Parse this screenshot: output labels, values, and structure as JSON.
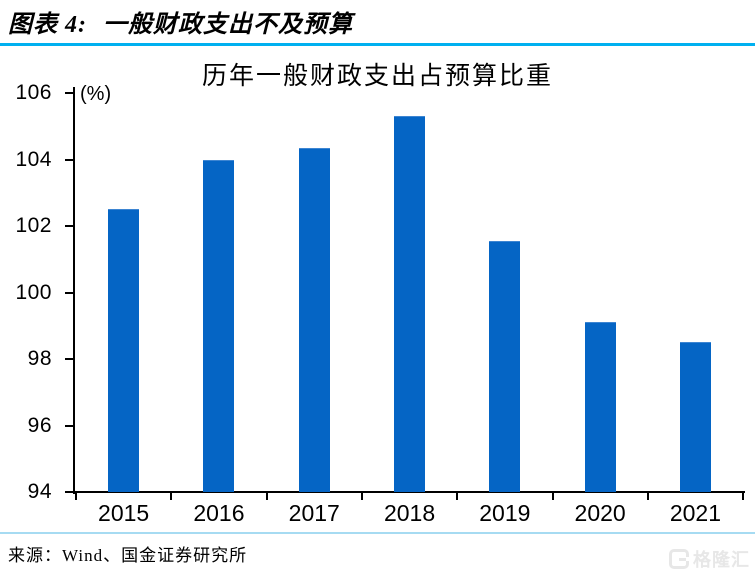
{
  "header": {
    "figure_label": "图表 4:",
    "figure_title": "一般财政支出不及预算"
  },
  "chart_data": {
    "type": "bar",
    "title": "历年一般财政支出占预算比重",
    "unit_label": "(%)",
    "xlabel": "",
    "ylabel": "(%)",
    "categories": [
      "2015",
      "2016",
      "2017",
      "2018",
      "2019",
      "2020",
      "2021"
    ],
    "values": [
      102.5,
      104.0,
      104.35,
      105.3,
      101.55,
      99.1,
      98.5
    ],
    "ylim": [
      94,
      106
    ],
    "yticks": [
      94,
      96,
      98,
      100,
      102,
      104,
      106
    ],
    "grid": false,
    "legend_position": "none",
    "bar_color": "#0565C5"
  },
  "footer": {
    "source": "来源：Wind、国金证券研究所",
    "watermark_text": "格隆汇",
    "watermark_icon": "gelonghui-logo-icon"
  },
  "colors": {
    "header_rule": "#00B0F0",
    "footer_rule": "#A6DBF2",
    "bar": "#0565C5",
    "axis": "#000000",
    "watermark": "#E7E7E7"
  }
}
